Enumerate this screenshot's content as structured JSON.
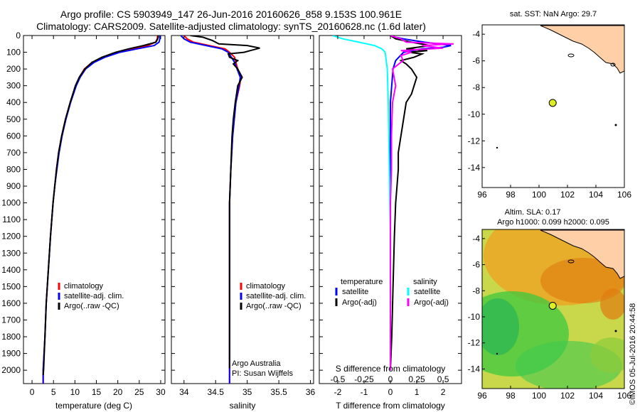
{
  "header": {
    "line1": "Argo profile: CS 5903949_147 26-Jun-2016 20160626_858 9.153S 100.961E",
    "line2": "Climatology: CARS2009. Satellite-adjusted climatology: synTS_20160628.nc (1.6d later)"
  },
  "colors": {
    "climatology": "#ff0000",
    "satellite": "#0000ff",
    "argo": "#000000",
    "s_satellite": "#00ffff",
    "s_argo": "#ff00ff",
    "land": "#ffd0a8",
    "marker": "#ddee22"
  },
  "chart_data": [
    {
      "id": "temperature",
      "type": "line",
      "xlabel": "temperature (deg C)",
      "ylabel": "",
      "xlim": [
        -2,
        31
      ],
      "ylim": [
        2080,
        0
      ],
      "x_ticks": [
        0,
        5,
        10,
        15,
        20,
        25,
        30
      ],
      "y_ticks": [
        0,
        100,
        200,
        300,
        400,
        500,
        600,
        700,
        800,
        900,
        1000,
        1100,
        1200,
        1300,
        1400,
        1500,
        1600,
        1700,
        1800,
        1900,
        2000
      ],
      "legend": {
        "position": "lower-left",
        "entries": [
          "climatology",
          "satellite-adj. clim.",
          "Argo(..raw -QC)"
        ]
      },
      "series": [
        {
          "name": "climatology",
          "color": "#ff0000",
          "depth": [
            0,
            20,
            40,
            60,
            80,
            100,
            130,
            160,
            200,
            250,
            300,
            400,
            500,
            600,
            700,
            800,
            900,
            1000,
            1200,
            1400,
            1600,
            1800,
            2000,
            2080
          ],
          "values": [
            29.3,
            29.2,
            28.8,
            27,
            23.5,
            20,
            16.5,
            14,
            12.2,
            11,
            10.2,
            8.9,
            7.8,
            6.9,
            6.2,
            5.7,
            5.3,
            4.9,
            4.3,
            3.8,
            3.3,
            3.0,
            2.6,
            2.6
          ]
        },
        {
          "name": "satellite-adj. clim.",
          "color": "#0000ff",
          "depth": [
            0,
            20,
            40,
            60,
            80,
            100,
            130,
            160,
            200,
            250,
            300,
            400,
            500,
            600,
            700,
            800,
            900,
            1000,
            1200,
            1400,
            1600,
            1800,
            2000,
            2080
          ],
          "values": [
            29.8,
            29.8,
            29.6,
            28.5,
            24.5,
            20.5,
            17,
            14.5,
            12.5,
            11.2,
            10.3,
            9,
            7.9,
            7,
            6.3,
            5.8,
            5.3,
            4.9,
            4.3,
            3.8,
            3.3,
            3.0,
            2.6,
            2.6
          ]
        },
        {
          "name": "Argo(..raw -QC)",
          "color": "#000000",
          "depth": [
            0,
            10,
            20,
            40,
            60,
            80,
            100,
            130,
            160,
            200,
            250,
            300,
            400,
            500,
            600,
            700,
            800,
            900,
            1000,
            1200,
            1400,
            1600,
            1800,
            2000,
            2030
          ],
          "values": [
            29.4,
            29.4,
            29.3,
            28.9,
            26,
            22.5,
            19.5,
            16.3,
            14,
            12.3,
            11,
            10.1,
            8.9,
            7.8,
            6.9,
            6.2,
            5.7,
            5.3,
            4.9,
            4.3,
            3.8,
            3.3,
            3,
            2.7,
            2.6
          ]
        }
      ]
    },
    {
      "id": "salinity",
      "type": "line",
      "xlabel": "salinity",
      "xlim": [
        33.8,
        36.05
      ],
      "ylim": [
        2080,
        0
      ],
      "x_ticks": [
        34,
        34.5,
        35,
        35.5,
        36
      ],
      "legend": {
        "position": "lower-right",
        "entries": [
          "climatology",
          "satellite-adj. clim.",
          "Argo(..raw -QC)"
        ]
      },
      "annotations": [
        "Argo Australia",
        "PI: Susan Wijffels"
      ],
      "series": [
        {
          "name": "climatology",
          "color": "#ff0000",
          "depth": [
            0,
            20,
            40,
            60,
            80,
            100,
            130,
            160,
            200,
            250,
            300,
            400,
            600,
            800,
            1000,
            1200,
            1500,
            1800,
            2000,
            2080
          ],
          "values": [
            34.0,
            34.05,
            34.15,
            34.4,
            34.65,
            34.72,
            34.8,
            34.82,
            34.85,
            34.9,
            34.88,
            34.82,
            34.77,
            34.74,
            34.72,
            34.72,
            34.72,
            34.72,
            34.72,
            34.72
          ]
        },
        {
          "name": "satellite-adj. clim.",
          "color": "#0000ff",
          "depth": [
            0,
            20,
            40,
            60,
            80,
            100,
            130,
            160,
            200,
            250,
            300,
            400,
            600,
            800,
            1000,
            1200,
            1500,
            1800,
            2000,
            2080
          ],
          "values": [
            33.95,
            34.0,
            34.1,
            34.35,
            34.6,
            34.7,
            34.75,
            34.8,
            34.84,
            34.89,
            34.87,
            34.82,
            34.77,
            34.74,
            34.72,
            34.72,
            34.72,
            34.72,
            34.72,
            34.72
          ]
        },
        {
          "name": "Argo(..raw -QC)",
          "color": "#000000",
          "depth": [
            0,
            10,
            30,
            50,
            60,
            75,
            90,
            100,
            110,
            130,
            150,
            170,
            200,
            250,
            300,
            350,
            400,
            500,
            600,
            700,
            800,
            900,
            1000,
            1200,
            1500,
            1800,
            1990
          ],
          "values": [
            34.1,
            34.3,
            34.45,
            34.55,
            35.0,
            35.2,
            35.05,
            34.95,
            34.7,
            34.72,
            34.85,
            34.78,
            34.85,
            34.92,
            34.85,
            34.83,
            34.81,
            34.78,
            34.76,
            34.75,
            34.74,
            34.73,
            34.72,
            34.72,
            34.72,
            34.72,
            34.72
          ]
        }
      ]
    },
    {
      "id": "difference",
      "type": "line",
      "xlabel": "T difference from climatology",
      "secondary_xlabel": "S difference from climatology",
      "xlim": [
        -2.7,
        2.7
      ],
      "ylim": [
        2080,
        0
      ],
      "x_ticks": [
        "-2",
        "-1",
        "0",
        "1",
        "2"
      ],
      "secondary_ticks": [
        "-0.5",
        "-0.25",
        "0",
        "0.25",
        "0.5"
      ],
      "legend": {
        "position": "lower-center",
        "entries": [
          "temperature",
          "satellite",
          "Argo(-adj)",
          "salinity",
          "satellite",
          "Argo(-adj)"
        ]
      },
      "series": [
        {
          "name": "temperature satellite",
          "color": "#0000ff",
          "depth": [
            0,
            10,
            20,
            30,
            40,
            50,
            60,
            70,
            80,
            100,
            150,
            200,
            400,
            1000,
            2000
          ],
          "values": [
            0,
            0.2,
            0.5,
            0.9,
            1.3,
            1.8,
            2.3,
            2.0,
            1.2,
            0.5,
            0.2,
            0.1,
            0,
            0,
            0
          ]
        },
        {
          "name": "temperature Argo(-adj)",
          "color": "#000000",
          "depth": [
            0,
            20,
            40,
            60,
            80,
            90,
            100,
            110,
            130,
            150,
            170,
            200,
            250,
            300,
            350,
            400,
            500,
            600,
            700,
            800,
            900,
            1000,
            1200,
            1500,
            1800,
            2000
          ],
          "values": [
            0,
            0.2,
            0.8,
            1.5,
            0.6,
            1.4,
            0.7,
            1.2,
            0.9,
            0.4,
            0.6,
            0.8,
            1.0,
            0.9,
            0.8,
            0.6,
            0.5,
            0.4,
            0.3,
            0.3,
            0.25,
            0.2,
            0.15,
            0.1,
            0.05,
            0
          ]
        },
        {
          "name": "salinity satellite",
          "color": "#00ffff",
          "depth": [
            0,
            20,
            40,
            60,
            80,
            100,
            200,
            400,
            800,
            1200,
            1600,
            2000
          ],
          "values": [
            -0.55,
            -0.45,
            -0.3,
            -0.15,
            -0.08,
            -0.05,
            -0.03,
            -0.02,
            -0.01,
            0,
            0,
            0
          ]
        },
        {
          "name": "salinity Argo(-adj)",
          "color": "#ff00ff",
          "depth": [
            0,
            20,
            40,
            50,
            60,
            75,
            90,
            100,
            120,
            150,
            200,
            300,
            400,
            600,
            800,
            1000,
            1500,
            2000
          ],
          "values": [
            0,
            0.1,
            0.15,
            0.6,
            0.3,
            0.5,
            0.1,
            0.2,
            0.1,
            0.12,
            0.02,
            0.05,
            0.02,
            0.01,
            0.01,
            0,
            0,
            0
          ]
        }
      ]
    }
  ],
  "maps": {
    "sst": {
      "title": "sat. SST: NaN Argo: 29.7",
      "x_ticks": [
        "96",
        "98",
        "100",
        "102",
        "104",
        "106"
      ],
      "y_ticks": [
        "-4",
        "-6",
        "-8",
        "-10",
        "-12",
        "-14"
      ],
      "float_lon": 100.961,
      "float_lat": -9.153
    },
    "sla": {
      "title1": "Altim. SLA: 0.17",
      "title2": "Argo h1000: 0.099 h2000: 0.095",
      "x_ticks": [
        "96",
        "98",
        "100",
        "102",
        "104",
        "106"
      ],
      "y_ticks": [
        "-4",
        "-6",
        "-8",
        "-10",
        "-12",
        "-14"
      ],
      "float_lon": 100.961,
      "float_lat": -9.153
    },
    "credit": "©IMOS 05-Jul-2016 20:44:58"
  }
}
